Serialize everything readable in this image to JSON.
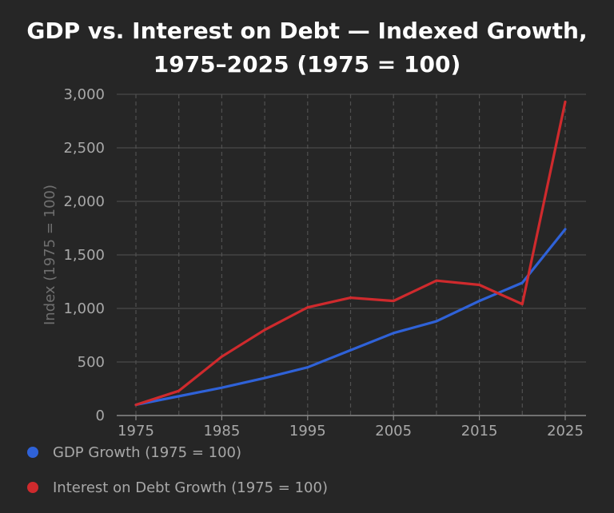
{
  "chart_data": {
    "type": "line",
    "title_lines": [
      "GDP vs. Interest on Debt — Indexed Growth,",
      "1975–2025 (1975 = 100)"
    ],
    "xlabel": "",
    "ylabel": "Index (1975 = 100)",
    "x": [
      1975,
      1980,
      1985,
      1990,
      1995,
      2000,
      2005,
      2010,
      2015,
      2020,
      2025
    ],
    "x_ticks": [
      "1975",
      "1985",
      "1995",
      "2005",
      "2015",
      "2025"
    ],
    "y_ticks": [
      "0",
      "500",
      "1,000",
      "1,500",
      "2,000",
      "2,500",
      "3,000"
    ],
    "xlim": [
      1975,
      2025
    ],
    "ylim": [
      0,
      3000
    ],
    "grid": true,
    "legend_position": "bottom-left",
    "series": [
      {
        "name": "GDP Growth (1975 = 100)",
        "color": "#2f62d8",
        "values": [
          100,
          180,
          260,
          350,
          450,
          610,
          770,
          880,
          1070,
          1240,
          1740
        ]
      },
      {
        "name": "Interest on Debt Growth (1975 = 100)",
        "color": "#cf2a2d",
        "values": [
          100,
          230,
          550,
          800,
          1010,
          1100,
          1070,
          1260,
          1220,
          1040,
          2930
        ]
      }
    ]
  }
}
